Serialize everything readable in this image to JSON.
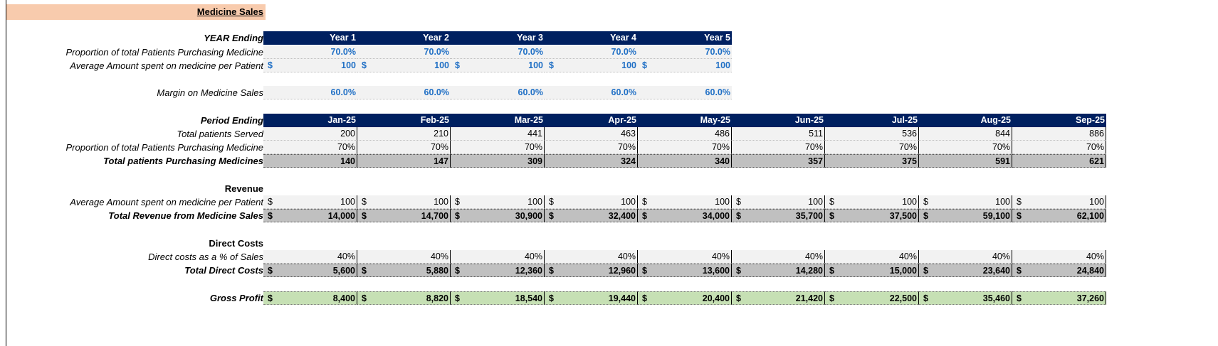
{
  "title": "Medicine Sales",
  "years": {
    "header_label": "YEAR Ending",
    "columns": [
      "Year 1",
      "Year 2",
      "Year 3",
      "Year 4",
      "Year 5"
    ],
    "proportion_label": "Proportion of total Patients Purchasing Medicine",
    "proportion": [
      "70.0%",
      "70.0%",
      "70.0%",
      "70.0%",
      "70.0%"
    ],
    "avg_label": "Average Amount spent on medicine per Patient",
    "avg": [
      "100",
      "100",
      "100",
      "100",
      "100"
    ],
    "margin_label": "Margin on Medicine Sales",
    "margin": [
      "60.0%",
      "60.0%",
      "60.0%",
      "60.0%",
      "60.0%"
    ]
  },
  "currency": "$",
  "months": {
    "header_label": "Period Ending",
    "columns": [
      "Jan-25",
      "Feb-25",
      "Mar-25",
      "Apr-25",
      "May-25",
      "Jun-25",
      "Jul-25",
      "Aug-25",
      "Sep-25"
    ],
    "patients_label": "Total patients Served",
    "patients": [
      "200",
      "210",
      "441",
      "463",
      "486",
      "511",
      "536",
      "844",
      "886"
    ],
    "proportion_label": "Proportion of total Patients Purchasing Medicine",
    "proportion": [
      "70%",
      "70%",
      "70%",
      "70%",
      "70%",
      "70%",
      "70%",
      "70%",
      "70%"
    ],
    "purchasing_label": "Total patients Purchasing Medicines",
    "purchasing": [
      "140",
      "147",
      "309",
      "324",
      "340",
      "357",
      "375",
      "591",
      "621"
    ],
    "revenue_section": "Revenue",
    "avg_label": "Average Amount spent on medicine per Patient",
    "avg": [
      "100",
      "100",
      "100",
      "100",
      "100",
      "100",
      "100",
      "100",
      "100"
    ],
    "revenue_label": "Total Revenue from Medicine Sales",
    "revenue": [
      "14,000",
      "14,700",
      "30,900",
      "32,400",
      "34,000",
      "35,700",
      "37,500",
      "59,100",
      "62,100"
    ],
    "costs_section": "Direct Costs",
    "cost_pct_label": "Direct costs as a % of Sales",
    "cost_pct": [
      "40%",
      "40%",
      "40%",
      "40%",
      "40%",
      "40%",
      "40%",
      "40%",
      "40%"
    ],
    "costs_label": "Total Direct Costs",
    "costs": [
      "5,600",
      "5,880",
      "12,360",
      "12,960",
      "13,600",
      "14,280",
      "15,000",
      "23,640",
      "24,840"
    ],
    "gp_label": "Gross Profit",
    "gp": [
      "8,400",
      "8,820",
      "18,540",
      "19,440",
      "20,400",
      "21,420",
      "22,500",
      "35,460",
      "37,260"
    ]
  }
}
